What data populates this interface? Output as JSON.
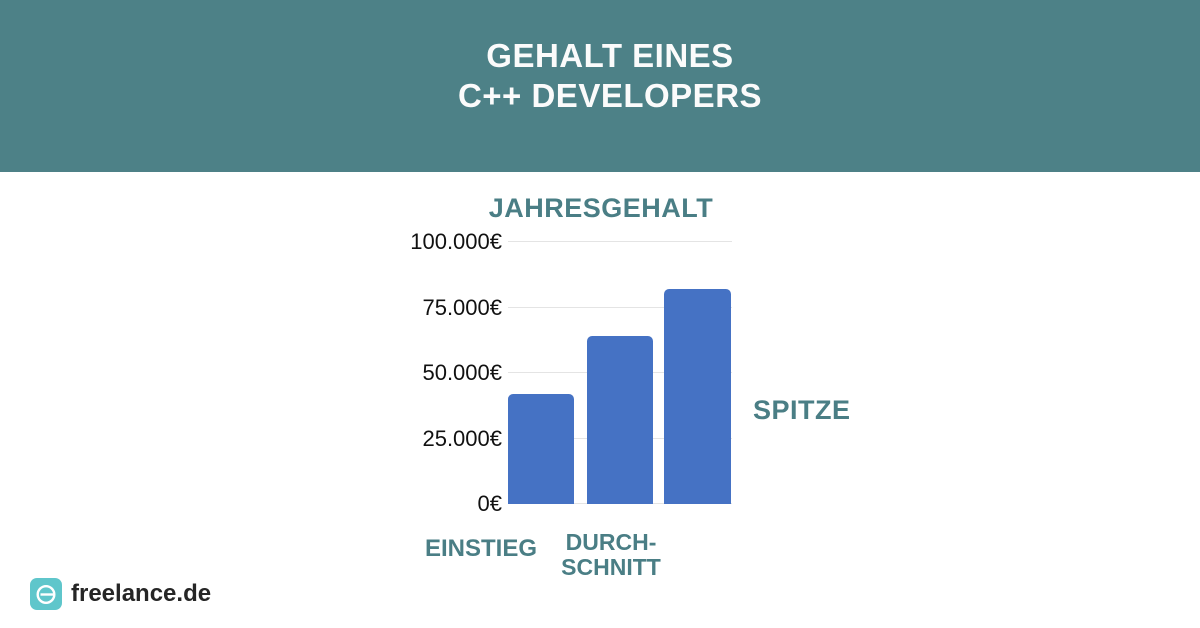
{
  "header": {
    "title_line1": "GEHALT EINES",
    "title_line2": "C++ DEVELOPERS"
  },
  "chart_data": {
    "type": "bar",
    "title": "JAHRESGEHALT",
    "categories": [
      "EINSTIEG",
      "DURCH-SCHNITT",
      "SPITZE"
    ],
    "values": [
      42000,
      64000,
      82000
    ],
    "unit": "EUR",
    "ylim": [
      0,
      100000
    ],
    "yticks": [
      {
        "label": "0€",
        "value": 0
      },
      {
        "label": "25.000€",
        "value": 25000
      },
      {
        "label": "50.000€",
        "value": 50000
      },
      {
        "label": "75.000€",
        "value": 75000
      },
      {
        "label": "100.000€",
        "value": 100000
      }
    ],
    "grid": true,
    "legend_position": "none",
    "bar_color": "#4572c4",
    "gridline_color": "#e4e4e4"
  },
  "footer": {
    "brand": "freelance.de"
  },
  "colors": {
    "header_bg": "#4d8187",
    "header_text": "#fbfbfb",
    "accent_teal": "#4a7e85",
    "tick_text": "#111111",
    "logo_teal": "#5fc6cb"
  }
}
